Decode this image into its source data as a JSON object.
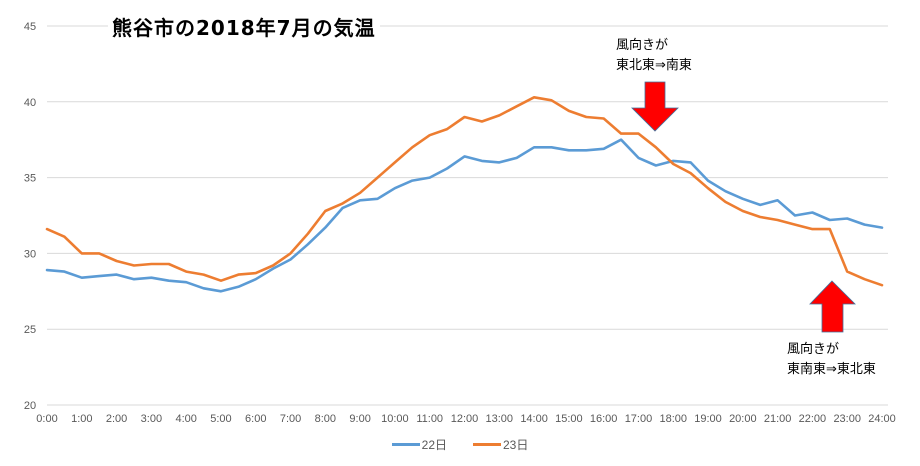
{
  "chart_data": {
    "type": "line",
    "title": "熊谷市の2018年7月の気温",
    "xlabel": "",
    "ylabel": "",
    "ylim": [
      20,
      45
    ],
    "yticks": [
      20,
      25,
      30,
      35,
      40,
      45
    ],
    "grid": true,
    "legend_position": "bottom",
    "x_tick_labels": [
      "0:00",
      "1:00",
      "2:00",
      "3:00",
      "4:00",
      "5:00",
      "6:00",
      "7:00",
      "8:00",
      "9:00",
      "10:00",
      "11:00",
      "12:00",
      "13:00",
      "14:00",
      "15:00",
      "16:00",
      "17:00",
      "18:00",
      "19:00",
      "20:00",
      "21:00",
      "22:00",
      "23:00",
      "24:00"
    ],
    "x": [
      0,
      0.5,
      1,
      1.5,
      2,
      2.5,
      3,
      3.5,
      4,
      4.5,
      5,
      5.5,
      6,
      6.5,
      7,
      7.5,
      8,
      8.5,
      9,
      9.5,
      10,
      10.5,
      11,
      11.5,
      12,
      12.5,
      13,
      13.5,
      14,
      14.5,
      15,
      15.5,
      16,
      16.5,
      17,
      17.5,
      18,
      18.5,
      19,
      19.5,
      20,
      20.5,
      21,
      21.5,
      22,
      22.5,
      23,
      23.5,
      24
    ],
    "series": [
      {
        "name": "22日",
        "color": "#5B9BD5",
        "values": [
          28.9,
          28.8,
          28.4,
          28.5,
          28.6,
          28.3,
          28.4,
          28.2,
          28.1,
          27.7,
          27.5,
          27.8,
          28.3,
          29.0,
          29.6,
          30.6,
          31.7,
          33.0,
          33.5,
          33.6,
          34.3,
          34.8,
          35.0,
          35.6,
          36.4,
          36.1,
          36.0,
          36.3,
          37.0,
          37.0,
          36.8,
          36.8,
          36.9,
          37.5,
          36.3,
          35.8,
          36.1,
          36.0,
          34.8,
          34.1,
          33.6,
          33.2,
          33.5,
          32.5,
          32.7,
          32.2,
          32.3,
          31.9,
          31.7
        ]
      },
      {
        "name": "23日",
        "color": "#ED7D31",
        "values": [
          31.6,
          31.1,
          30.0,
          30.0,
          29.5,
          29.2,
          29.3,
          29.3,
          28.8,
          28.6,
          28.2,
          28.6,
          28.7,
          29.2,
          30.0,
          31.3,
          32.8,
          33.3,
          34.0,
          35.0,
          36.0,
          37.0,
          37.8,
          38.2,
          39.0,
          38.7,
          39.1,
          39.7,
          40.3,
          40.1,
          39.4,
          39.0,
          38.9,
          37.9,
          37.9,
          37.0,
          35.9,
          35.3,
          34.3,
          33.4,
          32.8,
          32.4,
          32.2,
          31.9,
          31.6,
          31.6,
          28.8,
          28.3,
          27.9
        ]
      }
    ],
    "annotations": [
      {
        "line1": "風向きが",
        "line2": "東北東⇒南東",
        "arrow": "down",
        "at_hour": 17.5,
        "arrow_color": "#FF0000"
      },
      {
        "line1": "風向きが",
        "line2": "東南東⇒東北東",
        "arrow": "up",
        "at_hour": 22.6,
        "arrow_color": "#FF0000"
      }
    ]
  },
  "ui": {
    "title": "熊谷市の2018年7月の気温",
    "annotation1": {
      "line1": "風向きが",
      "line2": "東北東⇒南東"
    },
    "annotation2": {
      "line1": "風向きが",
      "line2": "東南東⇒東北東"
    },
    "legend": [
      {
        "label": "22日",
        "color": "#5B9BD5"
      },
      {
        "label": "23日",
        "color": "#ED7D31"
      }
    ]
  }
}
